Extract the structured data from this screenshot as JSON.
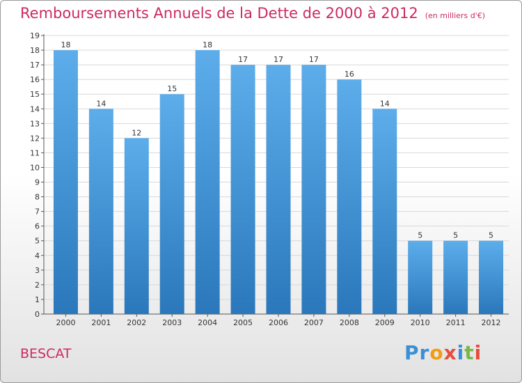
{
  "title": "Remboursements Annuels de la Dette de 2000 à 2012",
  "unit_label": "(en milliers d'€)",
  "commune": "BESCAT",
  "logo_text": "Proxiti",
  "colors": {
    "bar_light": "#5dadeb",
    "bar_dark": "#2a78bb",
    "title": "#cc2a5e",
    "logo": [
      "#3a8fd6",
      "#3a8fd6",
      "#f39c12",
      "#e74c3c",
      "#3a8fd6",
      "#7ab648",
      "#e74c3c"
    ]
  },
  "chart_data": {
    "type": "bar",
    "title": "Remboursements Annuels de la Dette de 2000 à 2012",
    "xlabel": "",
    "ylabel": "",
    "categories": [
      "2000",
      "2001",
      "2002",
      "2003",
      "2004",
      "2005",
      "2006",
      "2007",
      "2008",
      "2009",
      "2010",
      "2011",
      "2012"
    ],
    "values": [
      18,
      14,
      12,
      15,
      18,
      17,
      17,
      17,
      16,
      14,
      5,
      5,
      5
    ],
    "ylim": [
      0,
      19
    ],
    "yticks": [
      0,
      1,
      2,
      3,
      4,
      5,
      6,
      7,
      8,
      9,
      10,
      11,
      12,
      13,
      14,
      15,
      16,
      17,
      18,
      19
    ],
    "grid": true,
    "data_labels": true
  }
}
